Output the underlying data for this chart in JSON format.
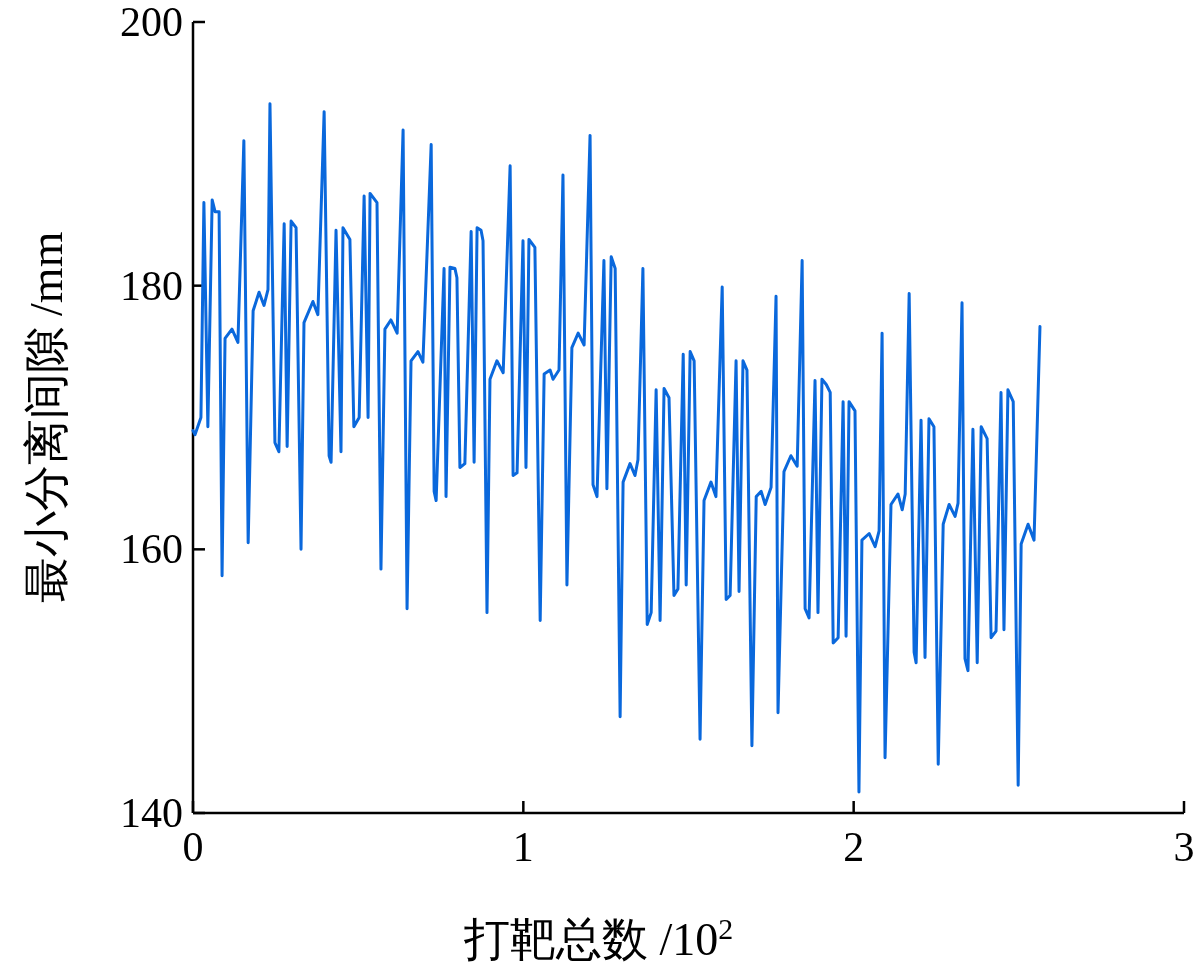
{
  "chart_data": {
    "type": "line",
    "xlabel": "打靶总数 /10$^{2}$",
    "ylabel": "最小分离间隙 /mm",
    "xlim": [
      0,
      3
    ],
    "ylim": [
      140,
      200
    ],
    "xticks": [
      0,
      1,
      2,
      3
    ],
    "yticks": [
      140,
      160,
      180,
      200
    ],
    "series": [
      {
        "color": "#0a68dc",
        "x": [
          0,
          0.006,
          0.024,
          0.033,
          0.045,
          0.058,
          0.067,
          0.079,
          0.088,
          0.097,
          0.118,
          0.136,
          0.154,
          0.167,
          0.182,
          0.2,
          0.215,
          0.227,
          0.233,
          0.248,
          0.26,
          0.276,
          0.285,
          0.297,
          0.312,
          0.327,
          0.336,
          0.363,
          0.378,
          0.397,
          0.412,
          0.418,
          0.433,
          0.448,
          0.454,
          0.475,
          0.487,
          0.503,
          0.518,
          0.53,
          0.536,
          0.557,
          0.569,
          0.581,
          0.599,
          0.618,
          0.636,
          0.648,
          0.66,
          0.681,
          0.696,
          0.721,
          0.73,
          0.736,
          0.76,
          0.766,
          0.778,
          0.793,
          0.799,
          0.808,
          0.823,
          0.842,
          0.851,
          0.86,
          0.872,
          0.878,
          0.89,
          0.899,
          0.92,
          0.939,
          0.96,
          0.969,
          0.981,
          0.999,
          1.008,
          1.017,
          1.035,
          1.051,
          1.063,
          1.081,
          1.09,
          1.108,
          1.12,
          1.132,
          1.147,
          1.166,
          1.184,
          1.202,
          1.211,
          1.223,
          1.244,
          1.253,
          1.266,
          1.278,
          1.293,
          1.302,
          1.323,
          1.338,
          1.347,
          1.362,
          1.375,
          1.387,
          1.402,
          1.414,
          1.426,
          1.441,
          1.456,
          1.468,
          1.484,
          1.493,
          1.505,
          1.517,
          1.535,
          1.547,
          1.568,
          1.583,
          1.602,
          1.614,
          1.626,
          1.644,
          1.653,
          1.665,
          1.677,
          1.692,
          1.705,
          1.72,
          1.732,
          1.75,
          1.765,
          1.771,
          1.789,
          1.81,
          1.829,
          1.844,
          1.853,
          1.865,
          1.883,
          1.892,
          1.904,
          1.917,
          1.929,
          1.938,
          1.953,
          1.968,
          1.977,
          1.986,
          2.004,
          2.016,
          2.025,
          2.047,
          2.065,
          2.077,
          2.086,
          2.095,
          2.113,
          2.134,
          2.147,
          2.156,
          2.168,
          2.183,
          2.189,
          2.204,
          2.216,
          2.228,
          2.243,
          2.256,
          2.271,
          2.289,
          2.307,
          2.316,
          2.328,
          2.337,
          2.346,
          2.361,
          2.374,
          2.386,
          2.404,
          2.416,
          2.431,
          2.446,
          2.455,
          2.467,
          2.483,
          2.498,
          2.507,
          2.528,
          2.546,
          2.564
        ],
        "values": [
          169.0,
          168.7,
          170.0,
          186.3,
          169.3,
          186.5,
          185.6,
          185.6,
          158.0,
          176.0,
          176.7,
          175.7,
          191.0,
          160.5,
          178.1,
          179.5,
          178.5,
          179.7,
          193.8,
          168.1,
          167.4,
          184.7,
          167.8,
          184.9,
          184.4,
          160.0,
          177.2,
          178.8,
          177.8,
          193.2,
          167.1,
          166.6,
          184.2,
          167.4,
          184.4,
          183.5,
          169.3,
          170.0,
          186.8,
          170.0,
          187.0,
          186.3,
          158.5,
          176.7,
          177.4,
          176.4,
          191.8,
          155.5,
          174.3,
          175.0,
          174.2,
          190.7,
          164.4,
          163.7,
          181.3,
          164.0,
          181.4,
          181.3,
          180.6,
          166.2,
          166.5,
          184.1,
          166.6,
          184.4,
          184.2,
          183.4,
          155.2,
          172.9,
          174.3,
          173.4,
          189.1,
          165.6,
          165.8,
          183.4,
          166.2,
          183.5,
          182.9,
          154.6,
          173.3,
          173.6,
          172.9,
          173.6,
          188.4,
          157.3,
          175.3,
          176.4,
          175.5,
          191.4,
          164.9,
          164.0,
          181.9,
          164.6,
          182.2,
          181.3,
          147.3,
          165.1,
          166.5,
          165.6,
          166.8,
          181.3,
          154.3,
          155.2,
          172.1,
          154.6,
          172.2,
          171.5,
          156.5,
          157.0,
          174.8,
          157.3,
          175.0,
          174.3,
          145.6,
          163.7,
          165.1,
          164.0,
          179.9,
          156.2,
          156.5,
          174.3,
          156.8,
          174.3,
          173.6,
          145.1,
          164.0,
          164.4,
          163.4,
          164.7,
          179.2,
          147.6,
          165.9,
          167.1,
          166.3,
          181.9,
          155.5,
          154.8,
          172.8,
          155.2,
          172.9,
          172.5,
          171.9,
          152.9,
          153.3,
          171.2,
          153.4,
          171.2,
          170.5,
          141.6,
          160.7,
          161.2,
          160.2,
          161.4,
          176.4,
          144.2,
          163.4,
          164.2,
          163.0,
          164.2,
          179.4,
          152.2,
          151.4,
          169.8,
          151.8,
          169.9,
          169.3,
          143.7,
          161.9,
          163.4,
          162.5,
          163.5,
          178.7,
          151.7,
          150.8,
          169.1,
          151.4,
          169.3,
          168.4,
          153.3,
          153.8,
          171.9,
          153.9,
          172.1,
          171.2,
          142.1,
          160.4,
          161.9,
          160.7,
          176.9
        ]
      }
    ]
  }
}
